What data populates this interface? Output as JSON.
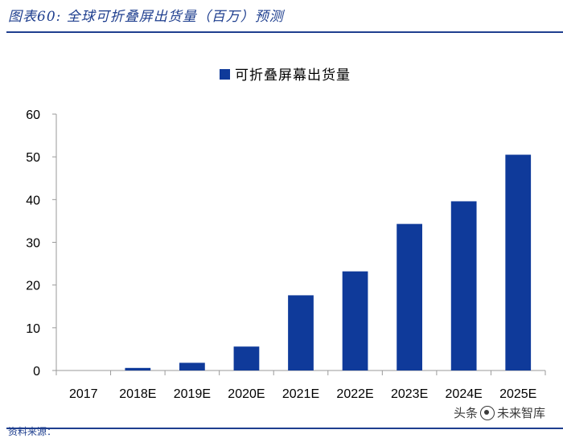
{
  "figure": {
    "title": "图表60: 全球可折叠屏出货量（百万）预测",
    "bottom_fragment": "资料来源：",
    "watermark": {
      "left": "头条",
      "icon": "camera-icon",
      "right": "未来智库"
    }
  },
  "colors": {
    "bar": "#0f3a9a",
    "accent": "#1f3f8f",
    "axis": "#9a9a9a"
  },
  "chart_data": {
    "type": "bar",
    "categories": [
      "2017",
      "2018E",
      "2019E",
      "2020E",
      "2021E",
      "2022E",
      "2023E",
      "2024E",
      "2025E"
    ],
    "series": [
      {
        "name": "可折叠屏幕出货量",
        "values": [
          0,
          0.6,
          1.8,
          5.6,
          17.6,
          23.2,
          34.3,
          39.6,
          50.5
        ]
      }
    ],
    "y_ticks": [
      "0",
      "10",
      "20",
      "30",
      "40",
      "50",
      "60"
    ],
    "ylim": [
      0,
      60
    ],
    "grid": false,
    "legend_position": "top-center",
    "xlabel": "",
    "ylabel": ""
  }
}
